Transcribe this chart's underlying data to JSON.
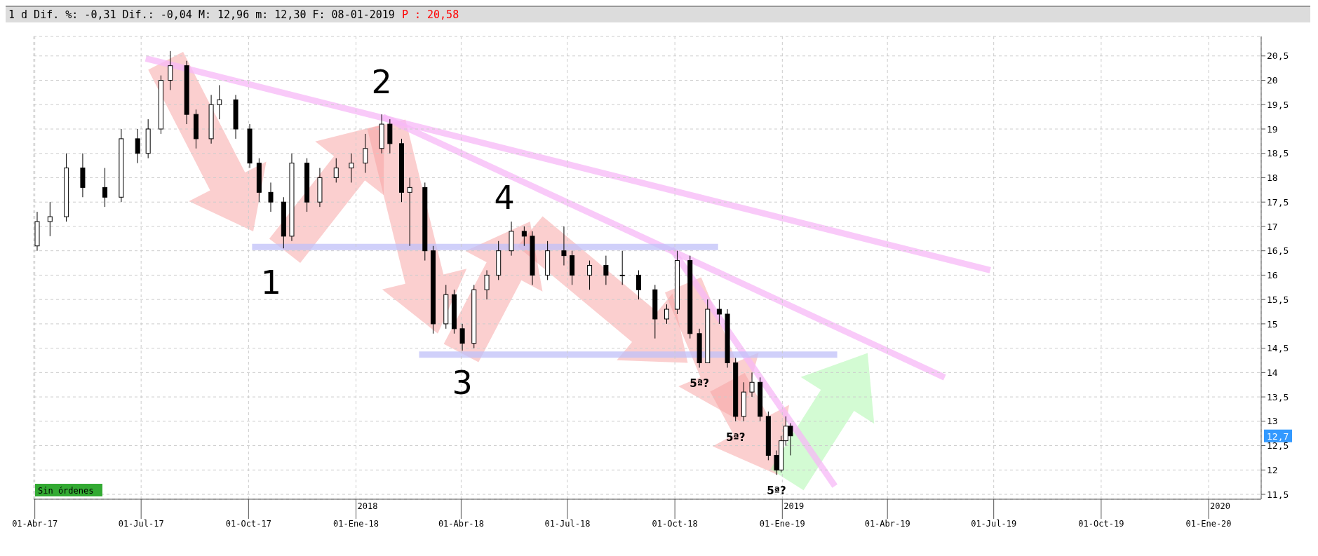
{
  "chart_data": {
    "type": "candlestick",
    "title": "1 d Dif. %: -0,31 Dif.: -0,04 M: 12,96 m: 12,30 F: 08-01-2019",
    "subtitle": "P : 20,58",
    "color": "#000000",
    "grid": true,
    "x": [
      "2017-04-03",
      "2017-04-14",
      "2017-04-28",
      "2017-05-12",
      "2017-05-31",
      "2017-06-14",
      "2017-06-28",
      "2017-07-07",
      "2017-07-18",
      "2017-07-26",
      "2017-08-09",
      "2017-08-17",
      "2017-08-30",
      "2017-09-06",
      "2017-09-20",
      "2017-10-02",
      "2017-10-10",
      "2017-10-20",
      "2017-10-31",
      "2017-11-07",
      "2017-11-20",
      "2017-12-01",
      "2017-12-15",
      "2017-12-28",
      "2018-01-09",
      "2018-01-23",
      "2018-01-30",
      "2018-02-09",
      "2018-02-16",
      "2018-03-01",
      "2018-03-08",
      "2018-03-19",
      "2018-03-26",
      "2018-04-02",
      "2018-04-12",
      "2018-04-23",
      "2018-05-03",
      "2018-05-14",
      "2018-05-25",
      "2018-06-01",
      "2018-06-14",
      "2018-06-28",
      "2018-07-05",
      "2018-07-20",
      "2018-08-03",
      "2018-08-17",
      "2018-08-31",
      "2018-09-14",
      "2018-09-24",
      "2018-10-03",
      "2018-10-14",
      "2018-10-22",
      "2018-10-29",
      "2018-11-08",
      "2018-11-15",
      "2018-11-22",
      "2018-11-29",
      "2018-12-06",
      "2018-12-13",
      "2018-12-20",
      "2018-12-27",
      "2018-12-31",
      "2019-01-04",
      "2019-01-08"
    ],
    "ohlc": [
      [
        16.6,
        17.3,
        16.5,
        17.1
      ],
      [
        17.1,
        17.5,
        16.8,
        17.2
      ],
      [
        17.2,
        18.5,
        17.1,
        18.2
      ],
      [
        18.2,
        18.5,
        17.6,
        17.8
      ],
      [
        17.8,
        18.2,
        17.4,
        17.6
      ],
      [
        17.6,
        19.0,
        17.5,
        18.8
      ],
      [
        18.8,
        19.0,
        18.3,
        18.5
      ],
      [
        18.5,
        19.2,
        18.4,
        19.0
      ],
      [
        19.0,
        20.1,
        18.9,
        20.0
      ],
      [
        20.0,
        20.6,
        19.8,
        20.3
      ],
      [
        20.3,
        20.4,
        19.1,
        19.3
      ],
      [
        19.3,
        19.4,
        18.6,
        18.8
      ],
      [
        18.8,
        19.7,
        18.7,
        19.5
      ],
      [
        19.5,
        19.9,
        19.2,
        19.6
      ],
      [
        19.6,
        19.7,
        18.8,
        19.0
      ],
      [
        19.0,
        19.1,
        18.2,
        18.3
      ],
      [
        18.3,
        18.4,
        17.5,
        17.7
      ],
      [
        17.7,
        17.9,
        17.3,
        17.5
      ],
      [
        17.5,
        17.6,
        16.55,
        16.8
      ],
      [
        16.8,
        18.5,
        16.7,
        18.3
      ],
      [
        18.3,
        18.4,
        17.3,
        17.5
      ],
      [
        17.5,
        18.2,
        17.4,
        18.0
      ],
      [
        18.0,
        18.4,
        17.9,
        18.2
      ],
      [
        18.2,
        18.5,
        17.9,
        18.3
      ],
      [
        18.3,
        18.9,
        18.1,
        18.6
      ],
      [
        18.6,
        19.3,
        18.5,
        19.1
      ],
      [
        19.1,
        19.2,
        18.5,
        18.7
      ],
      [
        18.7,
        18.8,
        17.5,
        17.7
      ],
      [
        17.7,
        18.0,
        16.6,
        17.8
      ],
      [
        17.8,
        17.9,
        16.3,
        16.5
      ],
      [
        16.5,
        16.6,
        14.8,
        15.0
      ],
      [
        15.0,
        15.8,
        14.9,
        15.6
      ],
      [
        15.6,
        15.7,
        14.8,
        14.9
      ],
      [
        14.9,
        15.0,
        14.45,
        14.6
      ],
      [
        14.6,
        15.8,
        14.5,
        15.7
      ],
      [
        15.7,
        16.1,
        15.5,
        16.0
      ],
      [
        16.0,
        16.7,
        15.9,
        16.5
      ],
      [
        16.5,
        17.1,
        16.4,
        16.9
      ],
      [
        16.9,
        17.0,
        16.6,
        16.8
      ],
      [
        16.8,
        16.9,
        15.8,
        16.0
      ],
      [
        16.0,
        16.7,
        15.9,
        16.5
      ],
      [
        16.5,
        17.0,
        16.2,
        16.4
      ],
      [
        16.4,
        16.5,
        15.8,
        16.0
      ],
      [
        16.0,
        16.3,
        15.7,
        16.2
      ],
      [
        16.2,
        16.4,
        15.8,
        16.0
      ],
      [
        16.0,
        16.5,
        15.8,
        16.0
      ],
      [
        16.0,
        16.1,
        15.5,
        15.7
      ],
      [
        15.7,
        15.8,
        14.7,
        15.1
      ],
      [
        15.1,
        15.4,
        15.0,
        15.3
      ],
      [
        15.3,
        16.5,
        15.2,
        16.3
      ],
      [
        16.3,
        16.4,
        14.7,
        14.8
      ],
      [
        14.8,
        14.9,
        14.1,
        14.2
      ],
      [
        14.2,
        15.5,
        14.2,
        15.3
      ],
      [
        15.3,
        15.5,
        15.0,
        15.2
      ],
      [
        15.2,
        15.3,
        14.1,
        14.2
      ],
      [
        14.2,
        14.3,
        13.0,
        13.1
      ],
      [
        13.1,
        13.8,
        13.0,
        13.6
      ],
      [
        13.6,
        14.0,
        13.5,
        13.8
      ],
      [
        13.8,
        13.9,
        13.0,
        13.1
      ],
      [
        13.1,
        13.2,
        12.2,
        12.3
      ],
      [
        12.3,
        12.4,
        11.9,
        12.0
      ],
      [
        12.0,
        12.7,
        11.95,
        12.6
      ],
      [
        12.6,
        13.1,
        12.5,
        12.9
      ],
      [
        12.9,
        12.96,
        12.3,
        12.7
      ]
    ],
    "series": [
      {
        "type": "line",
        "color": "#f7b8f7",
        "x": [
          "2017-07-05",
          "2019-06-28"
        ],
        "values": [
          20.45,
          16.1
        ]
      },
      {
        "type": "line",
        "color": "#f7b8f7",
        "x": [
          "2018-01-24",
          "2019-05-20"
        ],
        "values": [
          19.25,
          13.9
        ]
      },
      {
        "type": "line",
        "color": "#f7b8f7",
        "x": [
          "2018-09-28",
          "2019-02-15"
        ],
        "values": [
          16.55,
          11.67
        ]
      },
      {
        "type": "line",
        "color": "#c0c0f8",
        "x": [
          "2017-10-04",
          "2018-11-07"
        ],
        "values": [
          16.58,
          16.58
        ]
      },
      {
        "type": "line",
        "color": "#c0c0f8",
        "x": [
          "2018-02-24",
          "2019-02-17"
        ],
        "values": [
          14.37,
          14.37
        ]
      }
    ],
    "xlim": [
      "2017-03-31",
      "2020-02-15"
    ],
    "xticks": [
      {
        "value": "2017-04-01",
        "label": "01-Abr-17"
      },
      {
        "value": "2017-07-01",
        "label": "01-Jul-17"
      },
      {
        "value": "2017-10-01",
        "label": "01-Oct-17"
      },
      {
        "value": "2018-01-01",
        "label": "01-Ene-18"
      },
      {
        "value": "2018-04-01",
        "label": "01-Abr-18"
      },
      {
        "value": "2018-07-01",
        "label": "01-Jul-18"
      },
      {
        "value": "2018-10-01",
        "label": "01-Oct-18"
      },
      {
        "value": "2019-01-01",
        "label": "01-Ene-19"
      },
      {
        "value": "2019-04-01",
        "label": "01-Abr-19"
      },
      {
        "value": "2019-07-01",
        "label": "01-Jul-19"
      },
      {
        "value": "2019-10-01",
        "label": "01-Oct-19"
      },
      {
        "value": "2020-01-01",
        "label": "01-Ene-20"
      }
    ],
    "ylim": [
      11.4,
      20.9
    ],
    "yticks": [
      {
        "value": 11.5,
        "label": "11,5"
      },
      {
        "value": 12,
        "label": "12"
      },
      {
        "value": 12.5,
        "label": "12,5"
      },
      {
        "value": 13,
        "label": "13"
      },
      {
        "value": 13.5,
        "label": "13,5"
      },
      {
        "value": 14,
        "label": "14"
      },
      {
        "value": 14.5,
        "label": "14,5"
      },
      {
        "value": 15,
        "label": "15"
      },
      {
        "value": 15.5,
        "label": "15,5"
      },
      {
        "value": 16,
        "label": "16"
      },
      {
        "value": 16.5,
        "label": "16,5"
      },
      {
        "value": 17,
        "label": "17"
      },
      {
        "value": 17.5,
        "label": "17,5"
      },
      {
        "value": 18,
        "label": "18"
      },
      {
        "value": 18.5,
        "label": "18,5"
      },
      {
        "value": 19,
        "label": "19"
      },
      {
        "value": 19.5,
        "label": "19,5"
      },
      {
        "value": 20,
        "label": "20"
      },
      {
        "value": 20.5,
        "label": "20,5"
      }
    ],
    "annotations": [
      {
        "text": "1",
        "x": "2017-10-31",
        "y": 16.55
      },
      {
        "text": "2",
        "x": "2018-01-23",
        "y": 19.3
      },
      {
        "text": "3",
        "x": "2018-04-02",
        "y": 14.45
      },
      {
        "text": "4",
        "x": "2018-05-14",
        "y": 17.1
      },
      {
        "text": "5ª?",
        "x": "2018-10-22",
        "y": 14.1
      },
      {
        "text": "5ª?",
        "x": "2018-11-22",
        "y": 13.0
      },
      {
        "text": "5ª?",
        "x": "2018-12-27",
        "y": 11.9
      },
      "12,7",
      "2018",
      "2019",
      "2020",
      "Sin órdenes"
    ]
  }
}
